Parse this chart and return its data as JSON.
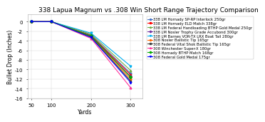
{
  "title": "338 Lapua Magnum vs .308 Win Short Range Trajectory Comparison",
  "xlabel": "Yards",
  "ylabel": "Bullet Drop (Inches)",
  "xlim": [
    40,
    330
  ],
  "ylim": [
    -16,
    1.5
  ],
  "xticks": [
    50,
    100,
    200,
    300
  ],
  "yticks": [
    0,
    -2,
    -4,
    -6,
    -8,
    -10,
    -12,
    -14,
    -16
  ],
  "series": [
    {
      "label": "338 LM Hornady SP-RP Interlock 250gr",
      "color": "#4472C4",
      "marker": "o",
      "x": [
        50,
        100,
        200,
        300
      ],
      "y": [
        0,
        0,
        -2.8,
        -10.8
      ]
    },
    {
      "label": "338 LM Hornady ELD Match 338gr",
      "color": "#FF0000",
      "marker": "s",
      "x": [
        50,
        100,
        200,
        300
      ],
      "y": [
        0,
        0,
        -2.9,
        -11.1
      ]
    },
    {
      "label": "338 LM Federal Handloading BTHP Gold Medal 250gr",
      "color": "#70AD47",
      "marker": "^",
      "x": [
        50,
        100,
        200,
        300
      ],
      "y": [
        0,
        0,
        -2.6,
        -10.2
      ]
    },
    {
      "label": "338 LM Nosler Trophy Grade Accubond 300gr",
      "color": "#7030A0",
      "marker": "D",
      "x": [
        50,
        100,
        200,
        300
      ],
      "y": [
        0,
        0,
        -3.0,
        -11.5
      ]
    },
    {
      "label": "338 LM Barnes VOR-TX LRX Boat Tail 280gr",
      "color": "#00B0F0",
      "marker": "v",
      "x": [
        50,
        100,
        200,
        300
      ],
      "y": [
        0,
        0,
        -2.4,
        -9.3
      ]
    },
    {
      "label": "308 Nosler Ballistic Tip 165gr",
      "color": "#FF6600",
      "marker": "o",
      "x": [
        50,
        100,
        200,
        300
      ],
      "y": [
        0,
        0,
        -3.1,
        -12.0
      ]
    },
    {
      "label": "308 Federal Vital Shok Ballistic Tip 165gr",
      "color": "#404040",
      "marker": "s",
      "x": [
        50,
        100,
        200,
        300
      ],
      "y": [
        0,
        0,
        -3.2,
        -12.4
      ]
    },
    {
      "label": "308 Winchester Super-X 180gr",
      "color": "#FF3399",
      "marker": "^",
      "x": [
        50,
        100,
        200,
        300
      ],
      "y": [
        0,
        0,
        -3.5,
        -13.8
      ]
    },
    {
      "label": "308 Hornady BTHP Match 168gr",
      "color": "#00AA00",
      "marker": "D",
      "x": [
        50,
        100,
        200,
        300
      ],
      "y": [
        0,
        0,
        -3.0,
        -11.6
      ]
    },
    {
      "label": "308 Federal Gold Medal 175gr",
      "color": "#0000FF",
      "marker": "v",
      "x": [
        50,
        100,
        200,
        300
      ],
      "y": [
        0,
        0,
        -3.3,
        -12.7
      ]
    }
  ],
  "bg_color": "#FFFFFF",
  "grid_color": "#D0D0D0",
  "title_fontsize": 6.5,
  "axis_fontsize": 5.5,
  "tick_fontsize": 5,
  "legend_fontsize": 3.8,
  "marker_size": 2.0,
  "linewidth": 0.8
}
